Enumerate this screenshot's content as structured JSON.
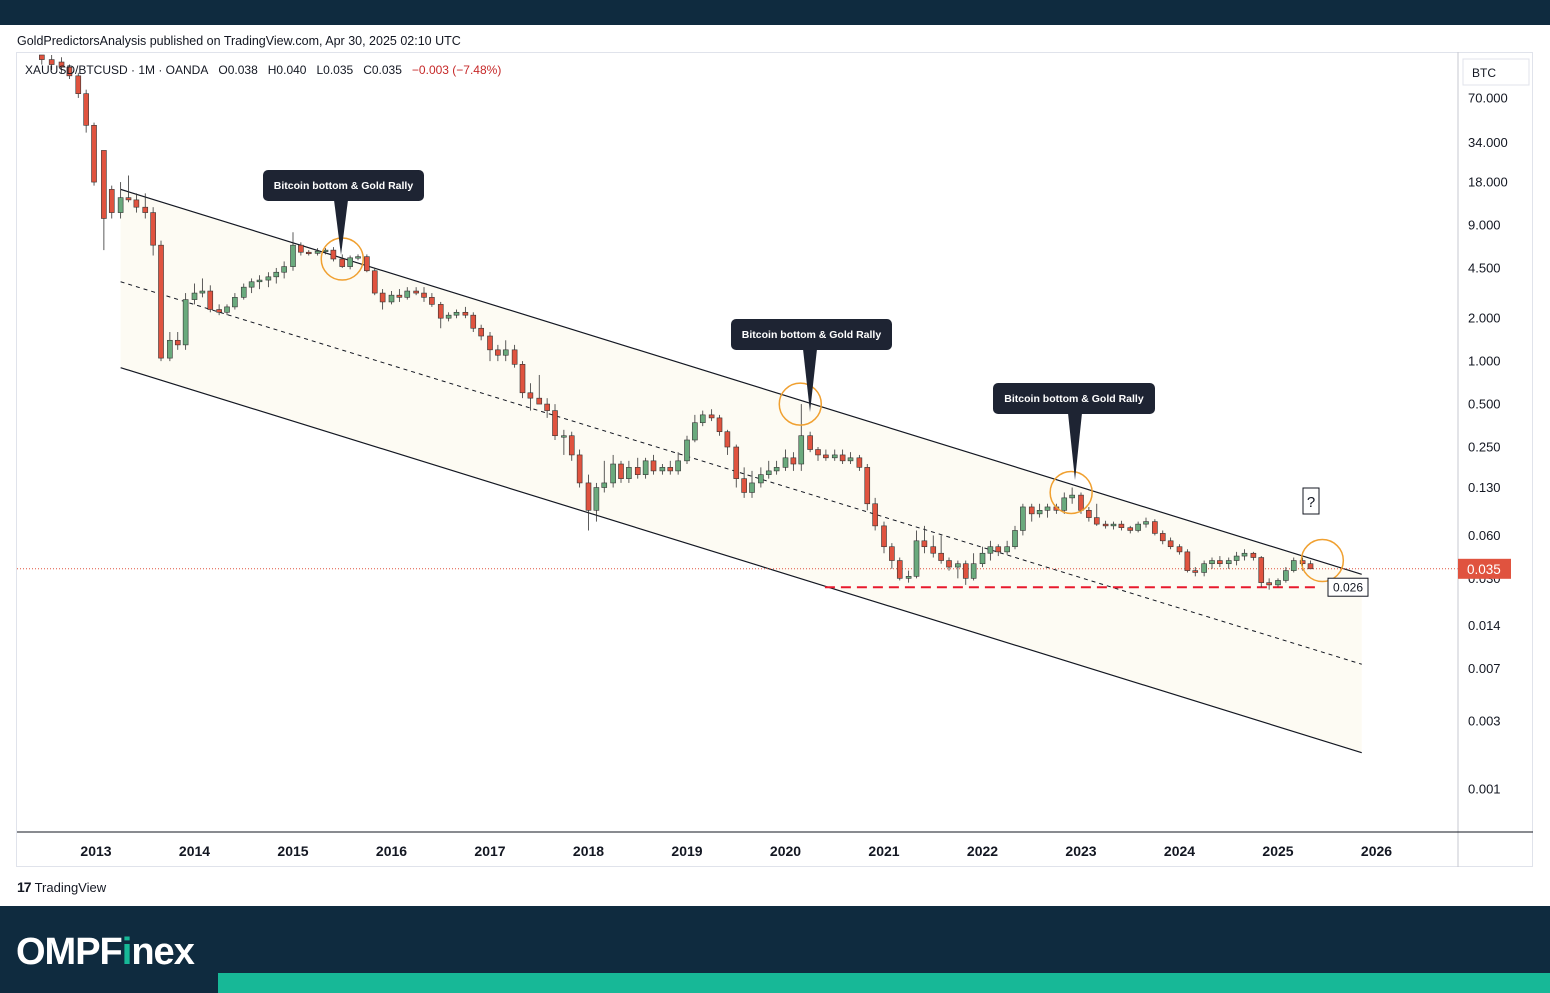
{
  "header": {
    "publisher_line": "GoldPredictorsAnalysis published on TradingView.com, Apr 30, 2025 02:10 UTC"
  },
  "legend": {
    "symbol": "XAUUSD/BTCUSD · 1M · OANDA",
    "open": "O0.038",
    "high": "H0.040",
    "low": "L0.035",
    "close": "C0.035",
    "change": "−0.003 (−7.48%)"
  },
  "price_scale": {
    "currency": "BTC",
    "current_price_label": "0.035",
    "support_label": "0.026",
    "question_mark": "?"
  },
  "annotations": [
    {
      "text": "Bitcoin bottom & Gold Rally"
    },
    {
      "text": "Bitcoin bottom & Gold Rally"
    },
    {
      "text": "Bitcoin bottom & Gold Rally"
    }
  ],
  "branding": {
    "tradingview": "TradingView",
    "brand_prefix": "OMPF",
    "brand_i": "i",
    "brand_suffix": "nex"
  },
  "colors": {
    "up": "#6aaa7d",
    "down": "#e0533f",
    "channel_fill": "#fdfbf3",
    "annotation_bg": "#1e2433",
    "circle": "#f0a030",
    "price_line": "#e0533f",
    "support_line": "#e8192c"
  },
  "chart_data": {
    "type": "candlestick",
    "scale": "log",
    "x_axis_ticks": [
      "2013",
      "2014",
      "2015",
      "2016",
      "2017",
      "2018",
      "2019",
      "2020",
      "2021",
      "2022",
      "2023",
      "2024",
      "2025",
      "2026"
    ],
    "y_axis_ticks": [
      "70.000",
      "34.000",
      "18.000",
      "9.000",
      "4.500",
      "2.000",
      "1.000",
      "0.500",
      "0.250",
      "0.130",
      "0.060",
      "0.030",
      "0.014",
      "0.007",
      "0.003",
      "0.001"
    ],
    "y_range": [
      0.0005,
      140
    ],
    "current_price": 0.035,
    "support_level": 0.026,
    "channel": {
      "upper": {
        "start": [
          2013.25,
          16
        ],
        "end": [
          2025.85,
          0.032
        ]
      },
      "middle": {
        "start": [
          2013.25,
          3.6
        ],
        "end": [
          2025.85,
          0.0075
        ]
      },
      "lower": {
        "start": [
          2013.25,
          0.9
        ],
        "end": [
          2025.85,
          0.0018
        ]
      }
    },
    "highlight_circles": [
      {
        "date": 2015.5,
        "value": 5.2
      },
      {
        "date": 2020.15,
        "value": 0.5
      },
      {
        "date": 2022.9,
        "value": 0.12
      },
      {
        "date": 2025.45,
        "value": 0.04
      }
    ],
    "candles": [
      {
        "t": 2012.45,
        "o": 140,
        "h": 150,
        "l": 120,
        "c": 130
      },
      {
        "t": 2012.55,
        "o": 130,
        "h": 140,
        "l": 110,
        "c": 120
      },
      {
        "t": 2012.65,
        "o": 125,
        "h": 135,
        "l": 105,
        "c": 115
      },
      {
        "t": 2012.73,
        "o": 115,
        "h": 120,
        "l": 95,
        "c": 100
      },
      {
        "t": 2012.82,
        "o": 100,
        "h": 105,
        "l": 70,
        "c": 75
      },
      {
        "t": 2012.9,
        "o": 75,
        "h": 80,
        "l": 40,
        "c": 45
      },
      {
        "t": 2012.98,
        "o": 45,
        "h": 47,
        "l": 17,
        "c": 18
      },
      {
        "t": 2013.08,
        "o": 30,
        "h": 30,
        "l": 6,
        "c": 10
      },
      {
        "t": 2013.16,
        "o": 16,
        "h": 17,
        "l": 10,
        "c": 11
      },
      {
        "t": 2013.25,
        "o": 11,
        "h": 18,
        "l": 10,
        "c": 14
      },
      {
        "t": 2013.33,
        "o": 14,
        "h": 20,
        "l": 13,
        "c": 13.5
      },
      {
        "t": 2013.41,
        "o": 13.5,
        "h": 15,
        "l": 11,
        "c": 12
      },
      {
        "t": 2013.5,
        "o": 12,
        "h": 15,
        "l": 10,
        "c": 11
      },
      {
        "t": 2013.58,
        "o": 11,
        "h": 12,
        "l": 5.5,
        "c": 6.5
      },
      {
        "t": 2013.66,
        "o": 6.5,
        "h": 7,
        "l": 1.0,
        "c": 1.05
      },
      {
        "t": 2013.75,
        "o": 1.05,
        "h": 1.6,
        "l": 1.0,
        "c": 1.4
      },
      {
        "t": 2013.83,
        "o": 1.4,
        "h": 1.6,
        "l": 1.2,
        "c": 1.3
      },
      {
        "t": 2013.91,
        "o": 1.3,
        "h": 3.0,
        "l": 1.2,
        "c": 2.7
      },
      {
        "t": 2014.0,
        "o": 2.7,
        "h": 3.5,
        "l": 2.5,
        "c": 3.0
      },
      {
        "t": 2014.08,
        "o": 3.0,
        "h": 3.8,
        "l": 2.8,
        "c": 3.1
      },
      {
        "t": 2014.16,
        "o": 3.1,
        "h": 3.4,
        "l": 2.2,
        "c": 2.3
      },
      {
        "t": 2014.25,
        "o": 2.3,
        "h": 2.5,
        "l": 2.1,
        "c": 2.2
      },
      {
        "t": 2014.33,
        "o": 2.2,
        "h": 2.5,
        "l": 2.1,
        "c": 2.4
      },
      {
        "t": 2014.41,
        "o": 2.4,
        "h": 3.0,
        "l": 2.3,
        "c": 2.8
      },
      {
        "t": 2014.5,
        "o": 2.8,
        "h": 3.5,
        "l": 2.7,
        "c": 3.3
      },
      {
        "t": 2014.58,
        "o": 3.3,
        "h": 3.8,
        "l": 3.0,
        "c": 3.6
      },
      {
        "t": 2014.66,
        "o": 3.6,
        "h": 4.0,
        "l": 3.2,
        "c": 3.7
      },
      {
        "t": 2014.75,
        "o": 3.7,
        "h": 4.2,
        "l": 3.3,
        "c": 3.9
      },
      {
        "t": 2014.83,
        "o": 3.9,
        "h": 4.5,
        "l": 3.5,
        "c": 4.2
      },
      {
        "t": 2014.91,
        "o": 4.2,
        "h": 5.0,
        "l": 3.8,
        "c": 4.6
      },
      {
        "t": 2015.0,
        "o": 4.6,
        "h": 8.0,
        "l": 4.3,
        "c": 6.5
      },
      {
        "t": 2015.08,
        "o": 6.5,
        "h": 6.8,
        "l": 5.5,
        "c": 5.8
      },
      {
        "t": 2015.16,
        "o": 5.8,
        "h": 6.0,
        "l": 5.5,
        "c": 5.7
      },
      {
        "t": 2015.25,
        "o": 5.7,
        "h": 6.2,
        "l": 5.5,
        "c": 5.9
      },
      {
        "t": 2015.33,
        "o": 5.9,
        "h": 6.2,
        "l": 5.6,
        "c": 6.0
      },
      {
        "t": 2015.41,
        "o": 6.0,
        "h": 6.3,
        "l": 5.0,
        "c": 5.2
      },
      {
        "t": 2015.5,
        "o": 5.2,
        "h": 5.6,
        "l": 4.5,
        "c": 4.6
      },
      {
        "t": 2015.58,
        "o": 4.6,
        "h": 5.5,
        "l": 4.4,
        "c": 5.3
      },
      {
        "t": 2015.66,
        "o": 5.3,
        "h": 5.6,
        "l": 5.1,
        "c": 5.4
      },
      {
        "t": 2015.75,
        "o": 5.4,
        "h": 5.6,
        "l": 4.2,
        "c": 4.3
      },
      {
        "t": 2015.83,
        "o": 4.3,
        "h": 4.5,
        "l": 2.9,
        "c": 3.0
      },
      {
        "t": 2015.91,
        "o": 3.0,
        "h": 3.2,
        "l": 2.3,
        "c": 2.6
      },
      {
        "t": 2016.0,
        "o": 2.6,
        "h": 3.1,
        "l": 2.5,
        "c": 2.9
      },
      {
        "t": 2016.08,
        "o": 2.9,
        "h": 3.2,
        "l": 2.6,
        "c": 2.8
      },
      {
        "t": 2016.16,
        "o": 2.8,
        "h": 3.3,
        "l": 2.7,
        "c": 3.1
      },
      {
        "t": 2016.25,
        "o": 3.1,
        "h": 3.3,
        "l": 2.9,
        "c": 3.0
      },
      {
        "t": 2016.33,
        "o": 3.0,
        "h": 3.3,
        "l": 2.6,
        "c": 2.8
      },
      {
        "t": 2016.41,
        "o": 2.8,
        "h": 3.0,
        "l": 2.4,
        "c": 2.5
      },
      {
        "t": 2016.5,
        "o": 2.5,
        "h": 2.6,
        "l": 1.7,
        "c": 2.0
      },
      {
        "t": 2016.58,
        "o": 2.0,
        "h": 2.2,
        "l": 1.9,
        "c": 2.1
      },
      {
        "t": 2016.66,
        "o": 2.1,
        "h": 2.3,
        "l": 2.0,
        "c": 2.2
      },
      {
        "t": 2016.75,
        "o": 2.2,
        "h": 2.4,
        "l": 2.0,
        "c": 2.1
      },
      {
        "t": 2016.83,
        "o": 2.1,
        "h": 2.2,
        "l": 1.6,
        "c": 1.7
      },
      {
        "t": 2016.91,
        "o": 1.7,
        "h": 1.8,
        "l": 1.4,
        "c": 1.5
      },
      {
        "t": 2017.0,
        "o": 1.5,
        "h": 1.6,
        "l": 1.0,
        "c": 1.2
      },
      {
        "t": 2017.08,
        "o": 1.2,
        "h": 1.3,
        "l": 1.0,
        "c": 1.1
      },
      {
        "t": 2017.16,
        "o": 1.1,
        "h": 1.4,
        "l": 1.0,
        "c": 1.2
      },
      {
        "t": 2017.25,
        "o": 1.2,
        "h": 1.3,
        "l": 0.9,
        "c": 0.95
      },
      {
        "t": 2017.33,
        "o": 0.95,
        "h": 1.0,
        "l": 0.55,
        "c": 0.6
      },
      {
        "t": 2017.41,
        "o": 0.6,
        "h": 0.7,
        "l": 0.45,
        "c": 0.55
      },
      {
        "t": 2017.5,
        "o": 0.55,
        "h": 0.8,
        "l": 0.5,
        "c": 0.5
      },
      {
        "t": 2017.58,
        "o": 0.5,
        "h": 0.55,
        "l": 0.4,
        "c": 0.45
      },
      {
        "t": 2017.66,
        "o": 0.45,
        "h": 0.5,
        "l": 0.28,
        "c": 0.3
      },
      {
        "t": 2017.75,
        "o": 0.3,
        "h": 0.33,
        "l": 0.22,
        "c": 0.3
      },
      {
        "t": 2017.83,
        "o": 0.3,
        "h": 0.32,
        "l": 0.2,
        "c": 0.22
      },
      {
        "t": 2017.91,
        "o": 0.22,
        "h": 0.24,
        "l": 0.13,
        "c": 0.14
      },
      {
        "t": 2018.0,
        "o": 0.14,
        "h": 0.16,
        "l": 0.065,
        "c": 0.09
      },
      {
        "t": 2018.08,
        "o": 0.09,
        "h": 0.14,
        "l": 0.075,
        "c": 0.13
      },
      {
        "t": 2018.16,
        "o": 0.13,
        "h": 0.2,
        "l": 0.12,
        "c": 0.14
      },
      {
        "t": 2018.25,
        "o": 0.14,
        "h": 0.22,
        "l": 0.13,
        "c": 0.19
      },
      {
        "t": 2018.33,
        "o": 0.19,
        "h": 0.2,
        "l": 0.14,
        "c": 0.15
      },
      {
        "t": 2018.41,
        "o": 0.15,
        "h": 0.2,
        "l": 0.14,
        "c": 0.18
      },
      {
        "t": 2018.5,
        "o": 0.18,
        "h": 0.21,
        "l": 0.15,
        "c": 0.16
      },
      {
        "t": 2018.58,
        "o": 0.16,
        "h": 0.21,
        "l": 0.15,
        "c": 0.2
      },
      {
        "t": 2018.66,
        "o": 0.2,
        "h": 0.22,
        "l": 0.16,
        "c": 0.17
      },
      {
        "t": 2018.75,
        "o": 0.17,
        "h": 0.19,
        "l": 0.16,
        "c": 0.18
      },
      {
        "t": 2018.83,
        "o": 0.18,
        "h": 0.2,
        "l": 0.16,
        "c": 0.17
      },
      {
        "t": 2018.91,
        "o": 0.17,
        "h": 0.23,
        "l": 0.16,
        "c": 0.2
      },
      {
        "t": 2019.0,
        "o": 0.2,
        "h": 0.3,
        "l": 0.19,
        "c": 0.28
      },
      {
        "t": 2019.08,
        "o": 0.28,
        "h": 0.42,
        "l": 0.27,
        "c": 0.37
      },
      {
        "t": 2019.16,
        "o": 0.37,
        "h": 0.45,
        "l": 0.35,
        "c": 0.42
      },
      {
        "t": 2019.25,
        "o": 0.42,
        "h": 0.46,
        "l": 0.38,
        "c": 0.4
      },
      {
        "t": 2019.33,
        "o": 0.4,
        "h": 0.42,
        "l": 0.3,
        "c": 0.32
      },
      {
        "t": 2019.41,
        "o": 0.32,
        "h": 0.33,
        "l": 0.22,
        "c": 0.25
      },
      {
        "t": 2019.5,
        "o": 0.25,
        "h": 0.26,
        "l": 0.13,
        "c": 0.15
      },
      {
        "t": 2019.58,
        "o": 0.15,
        "h": 0.18,
        "l": 0.11,
        "c": 0.12
      },
      {
        "t": 2019.66,
        "o": 0.12,
        "h": 0.17,
        "l": 0.11,
        "c": 0.14
      },
      {
        "t": 2019.75,
        "o": 0.14,
        "h": 0.18,
        "l": 0.13,
        "c": 0.16
      },
      {
        "t": 2019.83,
        "o": 0.16,
        "h": 0.2,
        "l": 0.15,
        "c": 0.17
      },
      {
        "t": 2019.91,
        "o": 0.17,
        "h": 0.2,
        "l": 0.16,
        "c": 0.18
      },
      {
        "t": 2020.0,
        "o": 0.18,
        "h": 0.24,
        "l": 0.17,
        "c": 0.21
      },
      {
        "t": 2020.08,
        "o": 0.21,
        "h": 0.23,
        "l": 0.17,
        "c": 0.19
      },
      {
        "t": 2020.16,
        "o": 0.19,
        "h": 0.5,
        "l": 0.17,
        "c": 0.3
      },
      {
        "t": 2020.25,
        "o": 0.3,
        "h": 0.32,
        "l": 0.23,
        "c": 0.24
      },
      {
        "t": 2020.33,
        "o": 0.24,
        "h": 0.25,
        "l": 0.2,
        "c": 0.22
      },
      {
        "t": 2020.41,
        "o": 0.22,
        "h": 0.24,
        "l": 0.2,
        "c": 0.21
      },
      {
        "t": 2020.5,
        "o": 0.21,
        "h": 0.24,
        "l": 0.2,
        "c": 0.22
      },
      {
        "t": 2020.58,
        "o": 0.22,
        "h": 0.24,
        "l": 0.19,
        "c": 0.2
      },
      {
        "t": 2020.66,
        "o": 0.2,
        "h": 0.23,
        "l": 0.19,
        "c": 0.21
      },
      {
        "t": 2020.75,
        "o": 0.21,
        "h": 0.22,
        "l": 0.17,
        "c": 0.18
      },
      {
        "t": 2020.83,
        "o": 0.18,
        "h": 0.19,
        "l": 0.09,
        "c": 0.1
      },
      {
        "t": 2020.91,
        "o": 0.1,
        "h": 0.11,
        "l": 0.065,
        "c": 0.07
      },
      {
        "t": 2021.0,
        "o": 0.07,
        "h": 0.075,
        "l": 0.045,
        "c": 0.05
      },
      {
        "t": 2021.08,
        "o": 0.05,
        "h": 0.053,
        "l": 0.035,
        "c": 0.04
      },
      {
        "t": 2021.16,
        "o": 0.04,
        "h": 0.042,
        "l": 0.029,
        "c": 0.03
      },
      {
        "t": 2021.25,
        "o": 0.03,
        "h": 0.034,
        "l": 0.028,
        "c": 0.031
      },
      {
        "t": 2021.33,
        "o": 0.031,
        "h": 0.065,
        "l": 0.03,
        "c": 0.055
      },
      {
        "t": 2021.41,
        "o": 0.055,
        "h": 0.07,
        "l": 0.045,
        "c": 0.05
      },
      {
        "t": 2021.5,
        "o": 0.05,
        "h": 0.06,
        "l": 0.042,
        "c": 0.045
      },
      {
        "t": 2021.58,
        "o": 0.045,
        "h": 0.06,
        "l": 0.038,
        "c": 0.04
      },
      {
        "t": 2021.66,
        "o": 0.04,
        "h": 0.042,
        "l": 0.034,
        "c": 0.036
      },
      {
        "t": 2021.75,
        "o": 0.036,
        "h": 0.04,
        "l": 0.03,
        "c": 0.038
      },
      {
        "t": 2021.83,
        "o": 0.038,
        "h": 0.04,
        "l": 0.027,
        "c": 0.03
      },
      {
        "t": 2021.91,
        "o": 0.03,
        "h": 0.045,
        "l": 0.029,
        "c": 0.038
      },
      {
        "t": 2022.0,
        "o": 0.038,
        "h": 0.05,
        "l": 0.036,
        "c": 0.045
      },
      {
        "t": 2022.08,
        "o": 0.045,
        "h": 0.055,
        "l": 0.04,
        "c": 0.05
      },
      {
        "t": 2022.16,
        "o": 0.05,
        "h": 0.052,
        "l": 0.043,
        "c": 0.046
      },
      {
        "t": 2022.25,
        "o": 0.046,
        "h": 0.055,
        "l": 0.044,
        "c": 0.05
      },
      {
        "t": 2022.33,
        "o": 0.05,
        "h": 0.07,
        "l": 0.048,
        "c": 0.065
      },
      {
        "t": 2022.41,
        "o": 0.065,
        "h": 0.1,
        "l": 0.06,
        "c": 0.095
      },
      {
        "t": 2022.5,
        "o": 0.095,
        "h": 0.1,
        "l": 0.075,
        "c": 0.085
      },
      {
        "t": 2022.58,
        "o": 0.085,
        "h": 0.1,
        "l": 0.08,
        "c": 0.09
      },
      {
        "t": 2022.66,
        "o": 0.09,
        "h": 0.1,
        "l": 0.08,
        "c": 0.095
      },
      {
        "t": 2022.75,
        "o": 0.095,
        "h": 0.1,
        "l": 0.085,
        "c": 0.09
      },
      {
        "t": 2022.83,
        "o": 0.09,
        "h": 0.12,
        "l": 0.085,
        "c": 0.11
      },
      {
        "t": 2022.91,
        "o": 0.11,
        "h": 0.13,
        "l": 0.1,
        "c": 0.115
      },
      {
        "t": 2023.0,
        "o": 0.115,
        "h": 0.12,
        "l": 0.085,
        "c": 0.09
      },
      {
        "t": 2023.08,
        "o": 0.09,
        "h": 0.095,
        "l": 0.075,
        "c": 0.08
      },
      {
        "t": 2023.16,
        "o": 0.08,
        "h": 0.1,
        "l": 0.07,
        "c": 0.072
      },
      {
        "t": 2023.25,
        "o": 0.072,
        "h": 0.076,
        "l": 0.067,
        "c": 0.07
      },
      {
        "t": 2023.33,
        "o": 0.07,
        "h": 0.075,
        "l": 0.066,
        "c": 0.072
      },
      {
        "t": 2023.41,
        "o": 0.072,
        "h": 0.076,
        "l": 0.065,
        "c": 0.068
      },
      {
        "t": 2023.5,
        "o": 0.068,
        "h": 0.07,
        "l": 0.062,
        "c": 0.065
      },
      {
        "t": 2023.58,
        "o": 0.065,
        "h": 0.075,
        "l": 0.063,
        "c": 0.072
      },
      {
        "t": 2023.66,
        "o": 0.072,
        "h": 0.08,
        "l": 0.068,
        "c": 0.075
      },
      {
        "t": 2023.75,
        "o": 0.075,
        "h": 0.078,
        "l": 0.06,
        "c": 0.062
      },
      {
        "t": 2023.83,
        "o": 0.062,
        "h": 0.065,
        "l": 0.052,
        "c": 0.055
      },
      {
        "t": 2023.91,
        "o": 0.055,
        "h": 0.058,
        "l": 0.048,
        "c": 0.05
      },
      {
        "t": 2024.0,
        "o": 0.05,
        "h": 0.052,
        "l": 0.044,
        "c": 0.046
      },
      {
        "t": 2024.08,
        "o": 0.046,
        "h": 0.048,
        "l": 0.033,
        "c": 0.034
      },
      {
        "t": 2024.16,
        "o": 0.034,
        "h": 0.036,
        "l": 0.031,
        "c": 0.033
      },
      {
        "t": 2024.25,
        "o": 0.033,
        "h": 0.04,
        "l": 0.031,
        "c": 0.038
      },
      {
        "t": 2024.33,
        "o": 0.038,
        "h": 0.042,
        "l": 0.035,
        "c": 0.04
      },
      {
        "t": 2024.41,
        "o": 0.04,
        "h": 0.043,
        "l": 0.036,
        "c": 0.038
      },
      {
        "t": 2024.5,
        "o": 0.038,
        "h": 0.042,
        "l": 0.035,
        "c": 0.04
      },
      {
        "t": 2024.58,
        "o": 0.04,
        "h": 0.046,
        "l": 0.037,
        "c": 0.043
      },
      {
        "t": 2024.66,
        "o": 0.043,
        "h": 0.048,
        "l": 0.04,
        "c": 0.045
      },
      {
        "t": 2024.75,
        "o": 0.045,
        "h": 0.046,
        "l": 0.04,
        "c": 0.042
      },
      {
        "t": 2024.83,
        "o": 0.042,
        "h": 0.043,
        "l": 0.026,
        "c": 0.028
      },
      {
        "t": 2024.91,
        "o": 0.028,
        "h": 0.03,
        "l": 0.025,
        "c": 0.027
      },
      {
        "t": 2025.0,
        "o": 0.027,
        "h": 0.03,
        "l": 0.026,
        "c": 0.029
      },
      {
        "t": 2025.08,
        "o": 0.029,
        "h": 0.036,
        "l": 0.028,
        "c": 0.034
      },
      {
        "t": 2025.16,
        "o": 0.034,
        "h": 0.042,
        "l": 0.033,
        "c": 0.04
      },
      {
        "t": 2025.25,
        "o": 0.04,
        "h": 0.042,
        "l": 0.034,
        "c": 0.038
      },
      {
        "t": 2025.33,
        "o": 0.038,
        "h": 0.04,
        "l": 0.035,
        "c": 0.035
      }
    ]
  }
}
